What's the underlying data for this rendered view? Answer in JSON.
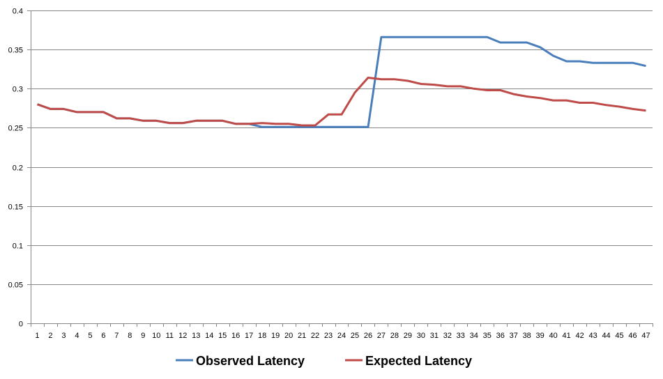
{
  "chart_data": {
    "type": "line",
    "title": "",
    "xlabel": "",
    "ylabel": "",
    "ylim": [
      0,
      0.4
    ],
    "yticks": [
      "0",
      "0.05",
      "0.1",
      "0.15",
      "0.2",
      "0.25",
      "0.3",
      "0.35",
      "0.4"
    ],
    "grid": true,
    "legend_position": "bottom",
    "x": [
      1,
      2,
      3,
      4,
      5,
      6,
      7,
      8,
      9,
      10,
      11,
      12,
      13,
      14,
      15,
      16,
      17,
      18,
      19,
      20,
      21,
      22,
      23,
      24,
      25,
      26,
      27,
      28,
      29,
      30,
      31,
      32,
      33,
      34,
      35,
      36,
      37,
      38,
      39,
      40,
      41,
      42,
      43,
      44,
      45,
      46,
      47
    ],
    "series": [
      {
        "name": "Observed Latency",
        "color": "#4a7ebb",
        "values": [
          0.28,
          0.274,
          0.274,
          0.27,
          0.27,
          0.27,
          0.262,
          0.262,
          0.259,
          0.259,
          0.256,
          0.256,
          0.259,
          0.259,
          0.259,
          0.255,
          0.255,
          0.251,
          0.251,
          0.251,
          0.251,
          0.251,
          0.251,
          0.251,
          0.251,
          0.251,
          0.366,
          0.366,
          0.366,
          0.366,
          0.366,
          0.366,
          0.366,
          0.366,
          0.366,
          0.359,
          0.359,
          0.359,
          0.353,
          0.342,
          0.335,
          0.335,
          0.333,
          0.333,
          0.333,
          0.333,
          0.329
        ]
      },
      {
        "name": "Expected Latency",
        "color": "#be4b48",
        "values": [
          0.28,
          0.274,
          0.274,
          0.27,
          0.27,
          0.27,
          0.262,
          0.262,
          0.259,
          0.259,
          0.256,
          0.256,
          0.259,
          0.259,
          0.259,
          0.255,
          0.255,
          0.256,
          0.255,
          0.255,
          0.253,
          0.253,
          0.267,
          0.267,
          0.295,
          0.314,
          0.312,
          0.312,
          0.31,
          0.306,
          0.305,
          0.303,
          0.303,
          0.3,
          0.298,
          0.298,
          0.293,
          0.29,
          0.288,
          0.285,
          0.285,
          0.282,
          0.282,
          0.279,
          0.277,
          0.274,
          0.272
        ]
      }
    ]
  }
}
